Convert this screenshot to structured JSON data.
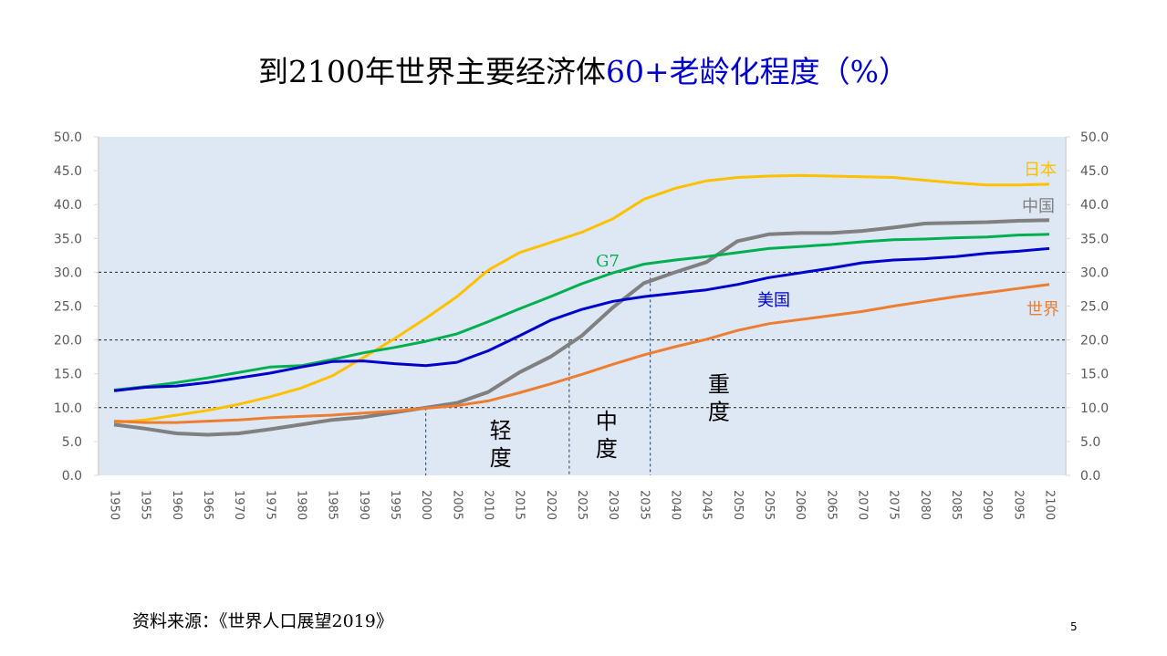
{
  "title": {
    "part1": "到2100年世界主要经济体",
    "part2": "60+老龄化程度（%）"
  },
  "source": "资料来源：《世界人口展望2019》",
  "page_number": "5",
  "chart_data": {
    "type": "line",
    "title": "到2100年世界主要经济体60+老龄化程度（%）",
    "x": [
      1950,
      1955,
      1960,
      1965,
      1970,
      1975,
      1980,
      1985,
      1990,
      1995,
      2000,
      2005,
      2010,
      2015,
      2020,
      2025,
      2030,
      2035,
      2040,
      2045,
      2050,
      2055,
      2060,
      2065,
      2070,
      2075,
      2080,
      2085,
      2090,
      2095,
      2100
    ],
    "ylim": [
      0,
      50
    ],
    "yticks": [
      "0.0",
      "5.0",
      "10.0",
      "15.0",
      "20.0",
      "25.0",
      "30.0",
      "35.0",
      "40.0",
      "45.0",
      "50.0"
    ],
    "y_axis_both_sides": true,
    "background": "#dde8f4",
    "series": [
      {
        "name": "日本",
        "color": "#ffc000",
        "values": [
          7.8,
          8.2,
          8.9,
          9.6,
          10.5,
          11.6,
          12.9,
          14.7,
          17.4,
          20.2,
          23.2,
          26.4,
          30.3,
          32.9,
          34.4,
          35.9,
          37.9,
          40.8,
          42.4,
          43.5,
          44.0,
          44.2,
          44.3,
          44.2,
          44.1,
          44.0,
          43.6,
          43.2,
          42.9,
          42.9,
          43.0
        ]
      },
      {
        "name": "中国",
        "color": "#808080",
        "values": [
          7.5,
          6.9,
          6.2,
          6.0,
          6.2,
          6.8,
          7.5,
          8.2,
          8.6,
          9.3,
          10.0,
          10.7,
          12.3,
          15.2,
          17.5,
          20.6,
          24.8,
          28.4,
          30.0,
          31.5,
          34.6,
          35.6,
          35.8,
          35.8,
          36.1,
          36.6,
          37.2,
          37.3,
          37.4,
          37.6,
          37.7
        ]
      },
      {
        "name": "G7",
        "color": "#00b050",
        "values": [
          12.6,
          13.1,
          13.7,
          14.4,
          15.2,
          16.0,
          16.2,
          17.1,
          18.1,
          18.9,
          19.8,
          20.9,
          22.7,
          24.6,
          26.4,
          28.3,
          29.9,
          31.2,
          31.8,
          32.3,
          32.9,
          33.5,
          33.8,
          34.1,
          34.5,
          34.8,
          34.9,
          35.1,
          35.2,
          35.5,
          35.6
        ]
      },
      {
        "name": "美国",
        "color": "#0000cc",
        "values": [
          12.5,
          13.0,
          13.2,
          13.7,
          14.4,
          15.1,
          16.0,
          16.8,
          16.9,
          16.5,
          16.2,
          16.7,
          18.4,
          20.6,
          22.9,
          24.5,
          25.7,
          26.4,
          26.9,
          27.4,
          28.2,
          29.2,
          29.9,
          30.6,
          31.4,
          31.8,
          32.0,
          32.3,
          32.8,
          33.1,
          33.5
        ]
      },
      {
        "name": "世界",
        "color": "#ed7d31",
        "values": [
          8.0,
          7.8,
          7.8,
          8.0,
          8.2,
          8.5,
          8.7,
          8.9,
          9.2,
          9.5,
          9.9,
          10.3,
          11.0,
          12.2,
          13.5,
          14.9,
          16.4,
          17.8,
          19.0,
          20.1,
          21.4,
          22.4,
          23.0,
          23.6,
          24.2,
          25.0,
          25.7,
          26.4,
          27.0,
          27.6,
          28.2
        ]
      }
    ],
    "threshold_lines": [
      10,
      20,
      30
    ],
    "stage_boundaries": [
      2000,
      2023,
      2036
    ],
    "stages": [
      {
        "label": "轻度",
        "year": 2012,
        "value": 5.5
      },
      {
        "label": "中度",
        "year": 2029,
        "value": 6.9
      },
      {
        "label": "重度",
        "year": 2047,
        "value": 12.3
      }
    ]
  }
}
